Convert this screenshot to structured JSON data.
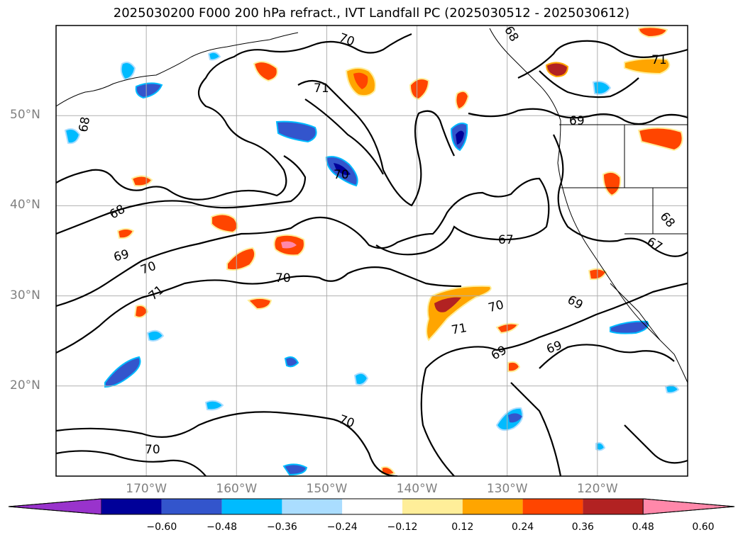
{
  "title": "2025030200 F000 200 hPa refract., IVT Landfall PC (2025030512 - 2025030612)",
  "map": {
    "projection": "PlateCarree",
    "lon_range": [
      -180,
      -110
    ],
    "lat_range": [
      10,
      60
    ],
    "lon_ticks": [
      {
        "lon": -170,
        "label": "170°W"
      },
      {
        "lon": -160,
        "label": "160°W"
      },
      {
        "lon": -150,
        "label": "150°W"
      },
      {
        "lon": -140,
        "label": "140°W"
      },
      {
        "lon": -130,
        "label": "130°W"
      },
      {
        "lon": -120,
        "label": "120°W"
      }
    ],
    "lat_ticks": [
      {
        "lat": 50,
        "label": "50°N"
      },
      {
        "lat": 40,
        "label": "40°N"
      },
      {
        "lat": 30,
        "label": "30°N"
      },
      {
        "lat": 20,
        "label": "20°N"
      }
    ],
    "grid": true,
    "contour_labels": [
      "70",
      "71",
      "68",
      "68",
      "69",
      "68",
      "70",
      "71",
      "69",
      "67",
      "71",
      "68",
      "67",
      "69",
      "70",
      "69",
      "70",
      "69",
      "70",
      "70",
      "70",
      "71"
    ]
  },
  "colorbar": {
    "extend": "both",
    "colors": [
      "#9933cc",
      "#000099",
      "#3355cc",
      "#00bbff",
      "#aaddff",
      "#ffffff",
      "#ffee99",
      "#ffa500",
      "#ff4500",
      "#b22222",
      "#ff88aa"
    ],
    "levels": [
      -0.6,
      -0.48,
      -0.36,
      -0.24,
      -0.12,
      0.12,
      0.24,
      0.36,
      0.48,
      0.6
    ],
    "tick_labels": [
      "−0.60",
      "−0.48",
      "−0.36",
      "−0.24",
      "−0.12",
      "0.12",
      "0.24",
      "0.36",
      "0.48",
      "0.60"
    ]
  }
}
